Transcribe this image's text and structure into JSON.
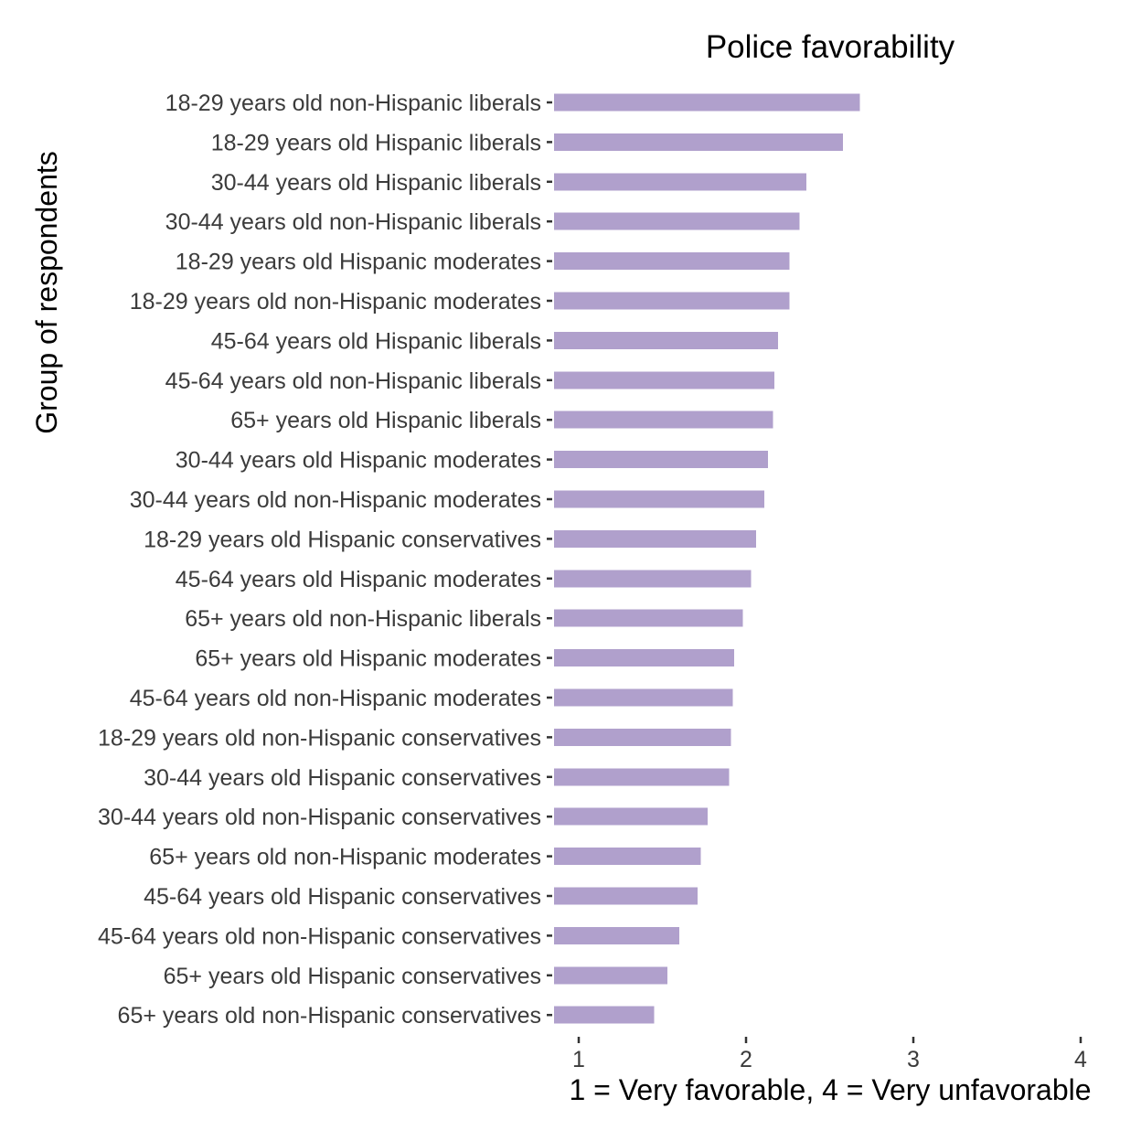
{
  "chart_data": {
    "type": "bar",
    "orientation": "horizontal",
    "title": "Police favorability",
    "xlabel": "1 = Very favorable, 4 = Very unfavorable",
    "ylabel": "Group of respondents",
    "xlim": [
      0.85,
      4
    ],
    "xticks": [
      "1",
      "2",
      "3",
      "4"
    ],
    "grid": false,
    "legend": "none",
    "bar_color": "#b0a0cc",
    "categories": [
      "18-29 years old non-Hispanic liberals",
      "18-29 years old Hispanic liberals",
      "30-44 years old Hispanic liberals",
      "30-44 years old non-Hispanic liberals",
      "18-29 years old Hispanic moderates",
      "18-29 years old non-Hispanic moderates",
      "45-64 years old Hispanic liberals",
      "45-64 years old non-Hispanic liberals",
      "65+ years old Hispanic liberals",
      "30-44 years old Hispanic moderates",
      "30-44 years old non-Hispanic moderates",
      "18-29 years old Hispanic conservatives",
      "45-64 years old Hispanic moderates",
      "65+ years old non-Hispanic liberals",
      "65+ years old Hispanic moderates",
      "45-64 years old non-Hispanic moderates",
      "18-29 years old non-Hispanic conservatives",
      "30-44 years old Hispanic conservatives",
      "30-44 years old non-Hispanic conservatives",
      "65+ years old non-Hispanic moderates",
      "45-64 years old Hispanic conservatives",
      "45-64 years old non-Hispanic conservatives",
      "65+ years old Hispanic conservatives",
      "65+ years old non-Hispanic conservatives"
    ],
    "values": [
      2.68,
      2.58,
      2.36,
      2.32,
      2.26,
      2.26,
      2.19,
      2.17,
      2.16,
      2.13,
      2.11,
      2.06,
      2.03,
      1.98,
      1.93,
      1.92,
      1.91,
      1.9,
      1.77,
      1.73,
      1.71,
      1.6,
      1.53,
      1.45
    ]
  }
}
